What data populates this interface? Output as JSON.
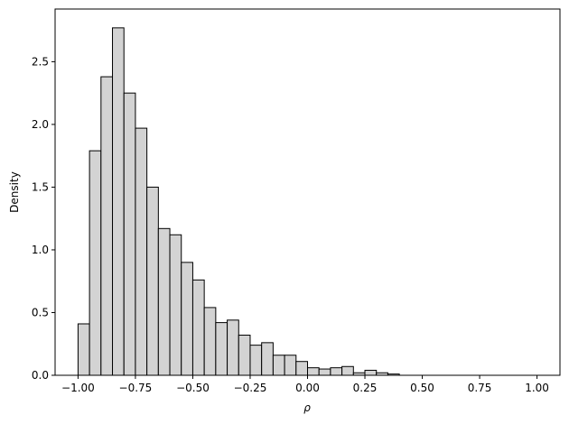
{
  "chart_data": {
    "type": "bar",
    "subtype": "histogram",
    "xlabel": "ρ",
    "ylabel": "Density",
    "xlim": [
      -1.1,
      1.1
    ],
    "ylim": [
      0,
      2.92
    ],
    "x_ticks": [
      -1.0,
      -0.75,
      -0.5,
      -0.25,
      0.0,
      0.25,
      0.5,
      0.75,
      1.0
    ],
    "x_tick_labels": [
      "−1.00",
      "−0.75",
      "−0.50",
      "−0.25",
      "0.00",
      "0.25",
      "0.50",
      "0.75",
      "1.00"
    ],
    "y_ticks": [
      0.0,
      0.5,
      1.0,
      1.5,
      2.0,
      2.5
    ],
    "y_tick_labels": [
      "0.0",
      "0.5",
      "1.0",
      "1.5",
      "2.0",
      "2.5"
    ],
    "bin_start": -1.0,
    "bin_width": 0.05,
    "values": [
      0.41,
      1.79,
      2.38,
      2.77,
      2.25,
      1.97,
      1.5,
      1.17,
      1.12,
      0.9,
      0.76,
      0.54,
      0.42,
      0.44,
      0.32,
      0.24,
      0.26,
      0.16,
      0.16,
      0.11,
      0.06,
      0.05,
      0.06,
      0.07,
      0.02,
      0.04,
      0.02,
      0.01,
      0,
      0,
      0,
      0,
      0,
      0,
      0,
      0,
      0,
      0,
      0,
      0
    ],
    "colors": {
      "bar_fill": "#d3d3d3",
      "bar_edge": "#000000"
    },
    "grid": false,
    "legend": "none"
  }
}
